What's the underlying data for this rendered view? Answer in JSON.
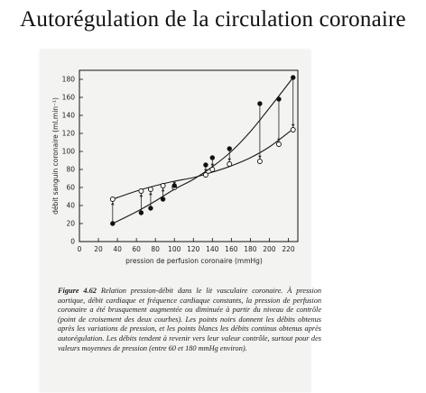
{
  "page_title": "Autorégulation de la circulation coronaire",
  "chart_data": {
    "type": "line",
    "xlabel": "pression de perfusion coronaire (mmHg)",
    "ylabel": "débit sanguin coronaire (ml.min⁻¹)",
    "xlim": [
      0,
      230
    ],
    "ylim": [
      0,
      190
    ],
    "xticks": [
      0,
      20,
      40,
      60,
      80,
      100,
      120,
      140,
      160,
      180,
      200,
      220
    ],
    "yticks": [
      0,
      20,
      40,
      60,
      80,
      100,
      120,
      140,
      160,
      180
    ],
    "grid": false,
    "legend": "none",
    "series": [
      {
        "marker": "filled-circle",
        "x": [
          35,
          65,
          75,
          88,
          100,
          133,
          140,
          158,
          190,
          210,
          225
        ],
        "y": [
          20,
          32,
          37,
          47,
          62,
          85,
          93,
          103,
          153,
          158,
          182
        ]
      },
      {
        "marker": "open-circle",
        "x": [
          35,
          65,
          75,
          88,
          100,
          133,
          140,
          158,
          190,
          210,
          225
        ],
        "y": [
          47,
          56,
          58,
          62,
          60,
          74,
          80,
          86,
          89,
          108,
          124
        ]
      }
    ],
    "curves": [
      {
        "name_hint": "steep",
        "x": [
          35,
          60,
          80,
          100,
          120,
          140,
          160,
          180,
          200,
          225
        ],
        "y": [
          20,
          33,
          45,
          58,
          69,
          83,
          100,
          122,
          148,
          182
        ]
      },
      {
        "name_hint": "plateau",
        "x": [
          35,
          60,
          80,
          100,
          120,
          140,
          160,
          180,
          200,
          225
        ],
        "y": [
          47,
          56,
          62,
          67,
          71,
          77,
          84,
          93,
          105,
          125
        ]
      }
    ]
  },
  "caption": {
    "figure_label": "Figure 4.62",
    "text": "Relation pression-débit dans le lit vasculaire coronaire. À pression aortique, débit cardiaque et fréquence cardiaque constants, la pression de perfusion coronaire a été brusquement augmentée ou diminuée à partir du niveau de contrôle (point de croisement des deux courbes). Les points noirs donnent les débits obtenus après les variations de pression, et les points blancs les débits continus obtenus après autorégulation. Les débits tendent à revenir vers leur valeur contrôle, surtout pour des valeurs moyennes de pression (entre 60 et 180 mmHg environ)."
  }
}
